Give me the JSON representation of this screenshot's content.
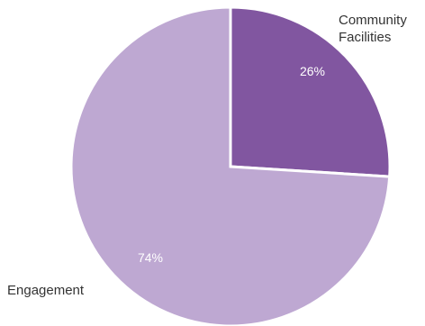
{
  "chart_data": {
    "type": "pie",
    "title": "",
    "slices": [
      {
        "label_lines": [
          "Community",
          "Facilities"
        ],
        "value": 26,
        "display": "26%",
        "color": "#8156a0"
      },
      {
        "label_lines": [
          "Engagement"
        ],
        "value": 74,
        "display": "74%",
        "color": "#bea8d2"
      }
    ],
    "start": "12 o'clock",
    "direction": "clockwise",
    "legend": "none",
    "separator_color": "#ffffff"
  }
}
